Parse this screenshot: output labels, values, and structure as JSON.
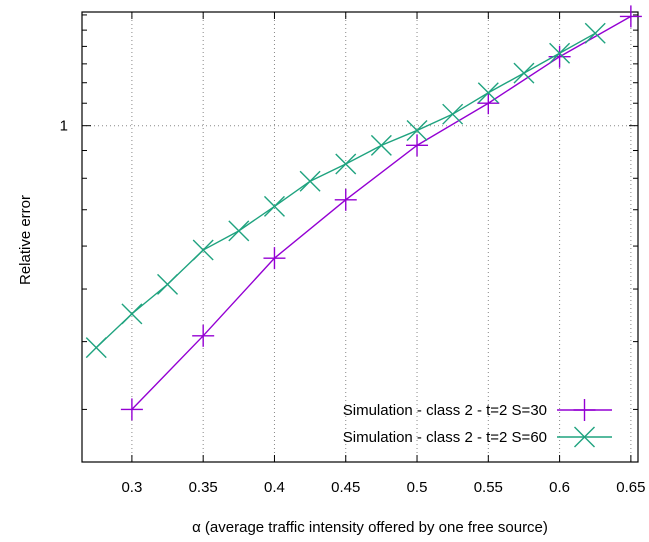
{
  "chart_data": {
    "type": "line",
    "xlabel": "α (average traffic intensity offered by one free source)",
    "ylabel": "Relative error",
    "xlim": [
      0.265,
      0.655
    ],
    "ylim": [
      0.24,
      1.62
    ],
    "y_scale": "log",
    "grid": true,
    "legend_position": "bottom-right",
    "x_ticks": [
      {
        "value": 0.3,
        "label": "0.3"
      },
      {
        "value": 0.35,
        "label": "0.35"
      },
      {
        "value": 0.4,
        "label": "0.4"
      },
      {
        "value": 0.45,
        "label": "0.45"
      },
      {
        "value": 0.5,
        "label": "0.5"
      },
      {
        "value": 0.55,
        "label": "0.55"
      },
      {
        "value": 0.6,
        "label": "0.6"
      },
      {
        "value": 0.65,
        "label": "0.65"
      }
    ],
    "y_ticks": [
      {
        "value": 1,
        "label": "1"
      }
    ],
    "y_minor_ticks": [
      0.3,
      0.4,
      0.5,
      0.6,
      0.7,
      0.8,
      0.9,
      1.1,
      1.2,
      1.3,
      1.4,
      1.5,
      1.6
    ],
    "series": [
      {
        "name": "Simulation - class 2 - t=2 S=30",
        "color": "#9400d3",
        "marker": "plus",
        "x": [
          0.3,
          0.35,
          0.4,
          0.45,
          0.5,
          0.55,
          0.6,
          0.65
        ],
        "y": [
          0.3,
          0.41,
          0.57,
          0.73,
          0.92,
          1.1,
          1.34,
          1.59
        ]
      },
      {
        "name": "Simulation - class 2 - t=2 S=60",
        "color": "#1fa37f",
        "marker": "cross",
        "x": [
          0.275,
          0.3,
          0.325,
          0.35,
          0.375,
          0.4,
          0.425,
          0.45,
          0.475,
          0.5,
          0.525,
          0.55,
          0.575,
          0.6,
          0.625
        ],
        "y": [
          0.39,
          0.45,
          0.51,
          0.59,
          0.64,
          0.71,
          0.79,
          0.85,
          0.92,
          0.98,
          1.05,
          1.15,
          1.25,
          1.36,
          1.48
        ]
      }
    ]
  }
}
